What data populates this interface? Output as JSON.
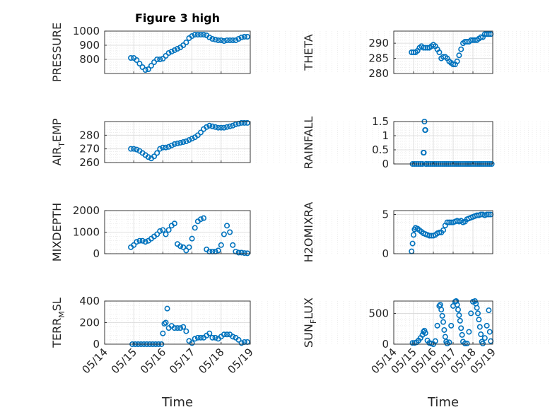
{
  "figure": {
    "title": "Figure 3 high",
    "marker_color": "#0072BD",
    "xtick_labels": [
      "05/14",
      "05/15",
      "05/16",
      "05/17",
      "05/18",
      "05/19"
    ],
    "xlabel": "Time"
  },
  "chart_data": [
    {
      "type": "scatter",
      "ylabel": "PRESSURE",
      "xlim": [
        0,
        5
      ],
      "ylim": [
        700,
        1000
      ],
      "yticks": [
        800,
        900,
        1000
      ],
      "xticks": [
        0,
        1,
        2,
        3,
        4,
        5
      ],
      "xlabel": "",
      "grid": true,
      "x": [
        0.9,
        1.0,
        1.1,
        1.2,
        1.3,
        1.4,
        1.5,
        1.6,
        1.7,
        1.8,
        1.9,
        2.0,
        2.1,
        2.2,
        2.3,
        2.4,
        2.5,
        2.6,
        2.7,
        2.8,
        2.9,
        3.0,
        3.1,
        3.2,
        3.3,
        3.4,
        3.5,
        3.6,
        3.7,
        3.8,
        3.9,
        4.0,
        4.1,
        4.2,
        4.3,
        4.4,
        4.5,
        4.6,
        4.7,
        4.8,
        4.9
      ],
      "y": [
        810,
        810,
        795,
        770,
        745,
        725,
        730,
        755,
        780,
        800,
        800,
        805,
        825,
        845,
        855,
        865,
        875,
        885,
        900,
        920,
        950,
        965,
        975,
        975,
        975,
        975,
        970,
        955,
        945,
        940,
        935,
        935,
        930,
        935,
        935,
        935,
        935,
        945,
        955,
        960,
        960
      ]
    },
    {
      "type": "scatter",
      "ylabel": "THETA",
      "xlim": [
        0,
        5
      ],
      "ylim": [
        280,
        294
      ],
      "yticks": [
        280,
        285,
        290
      ],
      "xticks": [
        0,
        1,
        2,
        3,
        4,
        5
      ],
      "xlabel": "",
      "grid": true,
      "x": [
        0.9,
        1.0,
        1.1,
        1.2,
        1.3,
        1.4,
        1.5,
        1.6,
        1.7,
        1.8,
        1.9,
        2.0,
        2.1,
        2.2,
        2.3,
        2.4,
        2.5,
        2.6,
        2.7,
        2.8,
        2.9,
        3.0,
        3.1,
        3.2,
        3.3,
        3.4,
        3.5,
        3.6,
        3.7,
        3.8,
        3.9,
        4.0,
        4.1,
        4.2,
        4.3,
        4.4,
        4.5,
        4.6,
        4.7,
        4.8,
        4.9
      ],
      "y": [
        287,
        287,
        287,
        287.5,
        288.5,
        289,
        288.5,
        288.5,
        288.5,
        288.5,
        289,
        289.5,
        289,
        288,
        287,
        285,
        285.5,
        285.5,
        285,
        284,
        283.5,
        283,
        283,
        284,
        286,
        288,
        290,
        290.5,
        290.5,
        290.5,
        291,
        291,
        291,
        291,
        291.5,
        292,
        292,
        293,
        293,
        293,
        293
      ]
    },
    {
      "type": "scatter",
      "ylabel": "AIR_TEMP",
      "xlim": [
        0,
        5
      ],
      "ylim": [
        260,
        290
      ],
      "yticks": [
        260,
        270,
        280
      ],
      "xticks": [
        0,
        1,
        2,
        3,
        4,
        5
      ],
      "xlabel": "",
      "grid": true,
      "x": [
        0.9,
        1.0,
        1.1,
        1.2,
        1.3,
        1.4,
        1.5,
        1.6,
        1.7,
        1.8,
        1.9,
        2.0,
        2.1,
        2.2,
        2.3,
        2.4,
        2.5,
        2.6,
        2.7,
        2.8,
        2.9,
        3.0,
        3.1,
        3.2,
        3.3,
        3.4,
        3.5,
        3.6,
        3.7,
        3.8,
        3.9,
        4.0,
        4.1,
        4.2,
        4.3,
        4.4,
        4.5,
        4.6,
        4.7,
        4.8,
        4.9
      ],
      "y": [
        270,
        270,
        269.5,
        268.5,
        267,
        265.5,
        264,
        263,
        264.5,
        267,
        270,
        271,
        271,
        271.5,
        272.5,
        273.5,
        274,
        274.5,
        275,
        275.5,
        276.5,
        277.5,
        278.5,
        280,
        282,
        284.5,
        286,
        287,
        286.5,
        286,
        285.5,
        285.5,
        285.5,
        286,
        286.5,
        287,
        288,
        288.5,
        289,
        289,
        289
      ]
    },
    {
      "type": "scatter",
      "ylabel": "RAINFALL",
      "xlim": [
        0,
        5
      ],
      "ylim": [
        0,
        1.5
      ],
      "yticks": [
        0,
        0.5,
        1,
        1.5
      ],
      "xticks": [
        0,
        1,
        2,
        3,
        4,
        5
      ],
      "xlabel": "",
      "grid": true,
      "x": [
        0.95,
        1.05,
        1.15,
        1.25,
        1.35,
        1.45,
        1.5,
        1.52,
        1.55,
        1.58,
        1.6,
        1.62,
        1.65,
        1.75,
        1.85,
        1.95,
        2.05,
        2.15,
        2.25,
        2.35,
        2.45,
        2.55,
        2.65,
        2.75,
        2.85,
        2.95,
        3.05,
        3.15,
        3.25,
        3.35,
        3.45,
        3.55,
        3.65,
        3.75,
        3.85,
        3.95,
        4.05,
        4.15,
        4.25,
        4.35,
        4.45,
        4.55,
        4.65,
        4.75,
        4.85,
        4.95
      ],
      "y": [
        0,
        0,
        0,
        0,
        0,
        0,
        0.4,
        0.4,
        1.5,
        1.2,
        1.2,
        0,
        0,
        0,
        0,
        0,
        0,
        0,
        0,
        0,
        0,
        0,
        0,
        0,
        0,
        0,
        0,
        0,
        0,
        0,
        0,
        0,
        0,
        0,
        0,
        0,
        0,
        0,
        0,
        0,
        0,
        0,
        0,
        0,
        0,
        0
      ]
    },
    {
      "type": "scatter",
      "ylabel": "MIXDEPTH",
      "xlim": [
        0,
        5
      ],
      "ylim": [
        0,
        2000
      ],
      "yticks": [
        0,
        1000,
        2000
      ],
      "xticks": [
        0,
        1,
        2,
        3,
        4,
        5
      ],
      "xlabel": "",
      "grid": true,
      "x": [
        0.9,
        1.0,
        1.1,
        1.2,
        1.3,
        1.4,
        1.5,
        1.6,
        1.7,
        1.8,
        1.9,
        2.0,
        2.1,
        2.2,
        2.3,
        2.4,
        2.5,
        2.6,
        2.7,
        2.8,
        2.9,
        3.0,
        3.1,
        3.2,
        3.3,
        3.4,
        3.5,
        3.6,
        3.7,
        3.8,
        3.9,
        4.0,
        4.1,
        4.2,
        4.3,
        4.4,
        4.5,
        4.6,
        4.7,
        4.8,
        4.9
      ],
      "y": [
        300,
        400,
        550,
        600,
        600,
        550,
        600,
        700,
        800,
        900,
        1050,
        1100,
        900,
        1100,
        1300,
        1400,
        450,
        350,
        300,
        150,
        300,
        700,
        1200,
        1500,
        1600,
        1650,
        200,
        100,
        100,
        100,
        150,
        400,
        900,
        1300,
        1000,
        400,
        100,
        50,
        50,
        30,
        20
      ]
    },
    {
      "type": "scatter",
      "ylabel": "H2OMIXRA",
      "xlim": [
        0,
        5
      ],
      "ylim": [
        0,
        5.5
      ],
      "yticks": [
        0,
        5
      ],
      "xticks": [
        0,
        1,
        2,
        3,
        4,
        5
      ],
      "xlabel": "",
      "grid": true,
      "x": [
        0.9,
        0.95,
        1.0,
        1.05,
        1.1,
        1.2,
        1.3,
        1.4,
        1.5,
        1.6,
        1.7,
        1.8,
        1.9,
        2.0,
        2.1,
        2.2,
        2.3,
        2.4,
        2.5,
        2.6,
        2.7,
        2.8,
        2.9,
        3.0,
        3.1,
        3.2,
        3.3,
        3.4,
        3.5,
        3.6,
        3.7,
        3.8,
        3.9,
        4.0,
        4.1,
        4.2,
        4.3,
        4.4,
        4.5,
        4.6,
        4.7,
        4.8,
        4.9
      ],
      "y": [
        0.3,
        1.3,
        2.4,
        3.1,
        3.3,
        3.2,
        3.0,
        2.8,
        2.6,
        2.5,
        2.4,
        2.3,
        2.3,
        2.3,
        2.4,
        2.6,
        2.7,
        2.7,
        3.0,
        3.6,
        4.0,
        4.0,
        4.0,
        4.0,
        4.1,
        4.2,
        4.1,
        4.2,
        4.0,
        4.1,
        4.4,
        4.5,
        4.6,
        4.7,
        4.8,
        4.9,
        4.9,
        5.0,
        5.0,
        4.9,
        5.0,
        5.0,
        5.0
      ]
    },
    {
      "type": "scatter",
      "ylabel": "TERR_MSL",
      "xlim": [
        0,
        5
      ],
      "ylim": [
        0,
        400
      ],
      "yticks": [
        0,
        200,
        400
      ],
      "xticks": [
        0,
        1,
        2,
        3,
        4,
        5
      ],
      "xlabel": "",
      "grid": true,
      "x": [
        0.95,
        1.05,
        1.15,
        1.25,
        1.35,
        1.45,
        1.55,
        1.65,
        1.75,
        1.85,
        1.95,
        2.0,
        2.05,
        2.1,
        2.15,
        2.2,
        2.3,
        2.4,
        2.5,
        2.6,
        2.7,
        2.8,
        2.9,
        3.0,
        3.1,
        3.2,
        3.3,
        3.4,
        3.5,
        3.6,
        3.7,
        3.8,
        3.9,
        4.0,
        4.1,
        4.2,
        4.3,
        4.4,
        4.5,
        4.6,
        4.7,
        4.8,
        4.9
      ],
      "y": [
        0,
        0,
        0,
        0,
        0,
        0,
        0,
        0,
        0,
        0,
        0,
        100,
        190,
        200,
        330,
        150,
        170,
        150,
        150,
        150,
        160,
        120,
        30,
        10,
        50,
        60,
        60,
        60,
        80,
        100,
        60,
        60,
        50,
        70,
        90,
        90,
        90,
        70,
        60,
        40,
        10,
        20,
        20
      ]
    },
    {
      "type": "scatter",
      "ylabel": "SUN_FLUX",
      "xlim": [
        0,
        5
      ],
      "ylim": [
        0,
        700
      ],
      "yticks": [
        0,
        500
      ],
      "xticks": [
        0,
        1,
        2,
        3,
        4,
        5
      ],
      "xlabel": "",
      "grid": true,
      "x": [
        0.95,
        1.05,
        1.15,
        1.25,
        1.35,
        1.45,
        1.5,
        1.55,
        1.6,
        1.7,
        1.8,
        1.9,
        2.0,
        2.1,
        2.2,
        2.3,
        2.35,
        2.4,
        2.45,
        2.5,
        2.55,
        2.6,
        2.65,
        2.7,
        2.8,
        2.9,
        3.0,
        3.1,
        3.15,
        3.2,
        3.25,
        3.3,
        3.35,
        3.4,
        3.45,
        3.5,
        3.6,
        3.7,
        3.8,
        3.9,
        4.0,
        4.1,
        4.15,
        4.2,
        4.25,
        4.3,
        4.35,
        4.4,
        4.45,
        4.5,
        4.6,
        4.7,
        4.8,
        4.85,
        4.9
      ],
      "y": [
        20,
        20,
        30,
        60,
        100,
        150,
        200,
        220,
        180,
        60,
        20,
        10,
        0,
        50,
        300,
        620,
        640,
        560,
        460,
        360,
        230,
        120,
        40,
        10,
        30,
        300,
        620,
        690,
        700,
        640,
        560,
        470,
        380,
        260,
        150,
        40,
        10,
        10,
        200,
        500,
        690,
        700,
        660,
        590,
        500,
        400,
        280,
        160,
        40,
        10,
        100,
        300,
        550,
        200,
        50
      ]
    }
  ]
}
